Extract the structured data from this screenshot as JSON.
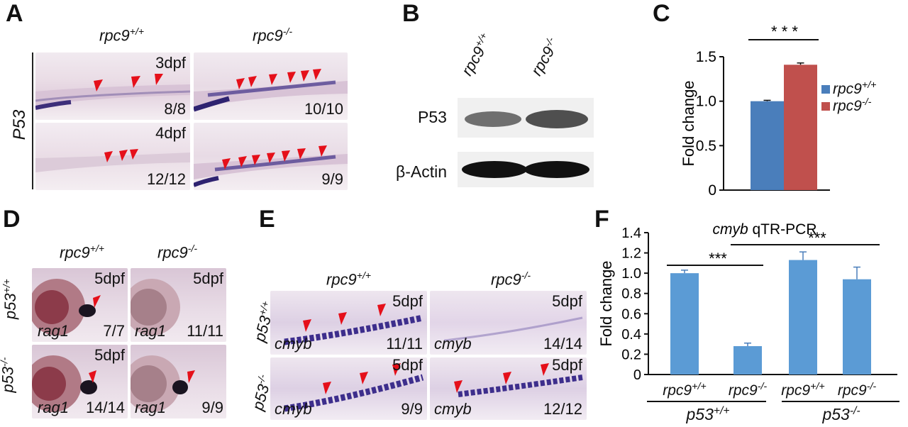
{
  "panels": {
    "A": {
      "letter": "A",
      "col1": {
        "base": "rpc9",
        "sup": "+/+"
      },
      "col2": {
        "base": "rpc9",
        "sup": "-/-"
      },
      "row_label": "P53",
      "tiles": [
        {
          "stage": "3dpf",
          "count": "8/8"
        },
        {
          "stage": "",
          "count": "10/10"
        },
        {
          "stage": "4dpf",
          "count": "12/12"
        },
        {
          "stage": "",
          "count": "9/9"
        }
      ]
    },
    "B": {
      "letter": "B",
      "col1": {
        "base": "rpc9",
        "sup": "+/+"
      },
      "col2": {
        "base": "rpc9",
        "sup": "-/-"
      },
      "row1": "P53",
      "row2": "β-Actin"
    },
    "D": {
      "letter": "D",
      "col1": {
        "base": "rpc9",
        "sup": "+/+"
      },
      "col2": {
        "base": "rpc9",
        "sup": "-/-"
      },
      "row1": {
        "base": "p53",
        "sup": "+/+"
      },
      "row2": {
        "base": "p53",
        "sup": "-/-"
      },
      "tiles": [
        {
          "stage": "5dpf",
          "gene": "rag1",
          "count": "7/7"
        },
        {
          "stage": "5dpf",
          "gene": "rag1",
          "count": "11/11"
        },
        {
          "stage": "5dpf",
          "gene": "rag1",
          "count": "14/14"
        },
        {
          "stage": "",
          "gene": "rag1",
          "count": "9/9"
        }
      ]
    },
    "E": {
      "letter": "E",
      "col1": {
        "base": "rpc9",
        "sup": "+/+"
      },
      "col2": {
        "base": "rpc9",
        "sup": "-/-"
      },
      "row1": {
        "base": "p53",
        "sup": "+/+"
      },
      "row2": {
        "base": "p53",
        "sup": "-/-"
      },
      "tiles": [
        {
          "stage": "5dpf",
          "gene": "cmyb",
          "count": "11/11"
        },
        {
          "stage": "5dpf",
          "gene": "cmyb",
          "count": "14/14"
        },
        {
          "stage": "5dpf",
          "gene": "cmyb",
          "count": "9/9"
        },
        {
          "stage": "5dpf",
          "gene": "cmyb",
          "count": "12/12"
        }
      ]
    }
  },
  "chart_data": [
    {
      "letter": "C",
      "type": "bar",
      "ylabel": "Fold change",
      "ylim": [
        0,
        1.5
      ],
      "yticks": [
        "0",
        "0.5",
        "1.0",
        "1.5"
      ],
      "series": [
        {
          "name": "rpc9",
          "sup": "+/+",
          "value": 1.0,
          "error": 0.01,
          "color": "#4a7ebb"
        },
        {
          "name": "rpc9",
          "sup": "-/-",
          "value": 1.41,
          "error": 0.02,
          "color": "#c0504d"
        }
      ],
      "significance": "* * *"
    },
    {
      "letter": "F",
      "type": "bar",
      "title_gene": "cmyb",
      "title_rest": " qTR-PCR",
      "ylabel": "Fold change",
      "ylim": [
        0,
        1.4
      ],
      "yticks": [
        "0",
        "0.2",
        "0.4",
        "0.6",
        "0.8",
        "1.0",
        "1.2",
        "1.4"
      ],
      "categories": [
        {
          "base": "rpc9",
          "sup": "+/+"
        },
        {
          "base": "rpc9",
          "sup": "-/-"
        },
        {
          "base": "rpc9",
          "sup": "+/+"
        },
        {
          "base": "rpc9",
          "sup": "-/-"
        }
      ],
      "values": [
        1.0,
        0.28,
        1.13,
        0.94
      ],
      "errors": [
        0.03,
        0.03,
        0.08,
        0.12
      ],
      "groups": [
        {
          "base": "p53",
          "sup": "+/+"
        },
        {
          "base": "p53",
          "sup": "-/-"
        }
      ],
      "significance": [
        "***",
        "***"
      ],
      "color": "#5b9bd5"
    }
  ]
}
